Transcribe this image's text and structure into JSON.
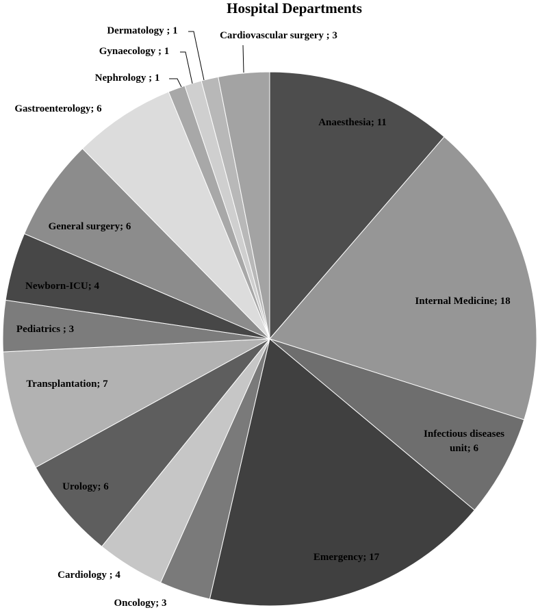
{
  "chart_data": {
    "type": "pie",
    "title": "Hospital Departments",
    "slices": [
      {
        "label": "Anaesthesia",
        "value": 11,
        "text": "Anaesthesia; 11",
        "color": "#4d4d4d"
      },
      {
        "label": "Internal Medicine",
        "value": 18,
        "text": "Internal Medicine; 18",
        "color": "#969696"
      },
      {
        "label": "Infectious diseases unit",
        "value": 6,
        "text": [
          "Infectious diseases",
          "unit;  6"
        ],
        "color": "#6e6e6e"
      },
      {
        "label": "Emergency",
        "value": 17,
        "text": "Emergency; 17",
        "color": "#404040"
      },
      {
        "label": "Oncology",
        "value": 3,
        "text": "Oncology; 3",
        "color": "#7a7a7a"
      },
      {
        "label": "Cardiology",
        "value": 4,
        "text": "Cardiology ; 4",
        "color": "#c6c6c6"
      },
      {
        "label": "Urology",
        "value": 6,
        "text": "Urology; 6",
        "color": "#5e5e5e"
      },
      {
        "label": "Transplantation",
        "value": 7,
        "text": "Transplantation; 7",
        "color": "#b2b2b2"
      },
      {
        "label": "Pediatrics",
        "value": 3,
        "text": "Pediatrics ; 3",
        "color": "#7c7c7c"
      },
      {
        "label": "Newborn-ICU",
        "value": 4,
        "text": "Newborn-ICU; 4",
        "color": "#474747"
      },
      {
        "label": "General surgery",
        "value": 6,
        "text": "General surgery; 6",
        "color": "#8c8c8c"
      },
      {
        "label": "Gastroenterology",
        "value": 6,
        "text": "Gastroenterology; 6",
        "color": "#dcdcdc"
      },
      {
        "label": "Nephrology",
        "value": 1,
        "text": "Nephrology ; 1",
        "color": "#a8a8a8"
      },
      {
        "label": "Gynaecology",
        "value": 1,
        "text": "Gynaecology ; 1",
        "color": "#cfcfcf"
      },
      {
        "label": "Dermatology",
        "value": 1,
        "text": "Dermatology ; 1",
        "color": "#b8b8b8"
      },
      {
        "label": "Cardiovascular surgery",
        "value": 3,
        "text": "Cardiovascular surgery ; 3",
        "color": "#a3a3a3"
      }
    ]
  }
}
